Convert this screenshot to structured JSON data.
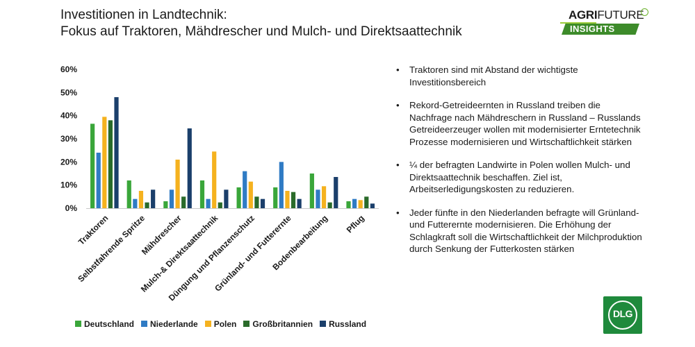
{
  "header": {
    "title_line1": "Investitionen in Landtechnik:",
    "title_line2": "Fokus auf Traktoren, Mähdrescher und Mulch- und Direktsaattechnik"
  },
  "logo_agrifuture": {
    "agri": "AGRI",
    "future": "FUTURE",
    "insights": "INSIGHTS"
  },
  "logo_dlg": {
    "text": "DLG"
  },
  "notes": [
    "Traktoren sind mit Abstand der wichtigste Investitionsbereich",
    "Rekord-Getreideernten in Russland treiben die Nachfrage nach Mähdreschern in Russland – Russlands Getreideerzeuger wollen mit modernisierter Erntetechnik Prozesse modernisieren und Wirtschaftlichkeit stärken",
    "¼ der befragten Landwirte in Polen wollen Mulch- und Direktsaattechnik beschaffen. Ziel ist, Arbeitserledigungskosten zu reduzieren.",
    "Jeder fünfte in den Niederlanden befragte will Grünland- und Futterernte modernisieren. Die Erhöhung der Schlagkraft soll die Wirtschaftlichkeit der Milchproduktion durch Senkung der Futterkosten stärken"
  ],
  "bullet_char": "•",
  "chart_data": {
    "type": "bar",
    "title": "",
    "xlabel": "",
    "ylabel": "",
    "ylim": [
      0,
      60
    ],
    "ytick_values": [
      0,
      10,
      20,
      30,
      40,
      50,
      60
    ],
    "ytick_labels": [
      "0%",
      "10%",
      "20%",
      "30%",
      "40%",
      "50%",
      "60%"
    ],
    "grid": false,
    "legend_position": "bottom",
    "categories": [
      "Traktoren",
      "Selbstfahrende Spritze",
      "Mähdrescher",
      "Mulch-& Direktsaattechnik",
      "Düngung und Pflanzenschutz",
      "Grünland- und Futterernte",
      "Bodenbearbeitung",
      "Pflug"
    ],
    "series": [
      {
        "name": "Deutschland",
        "color": "#3aa63a",
        "values": [
          36.5,
          12,
          3,
          12,
          9,
          9,
          15,
          3
        ]
      },
      {
        "name": "Niederlande",
        "color": "#2f7bc4",
        "values": [
          24,
          4,
          8,
          4,
          16,
          20,
          8,
          4
        ]
      },
      {
        "name": "Polen",
        "color": "#f5b21f",
        "values": [
          39.5,
          7.5,
          21,
          24.5,
          11.5,
          7.5,
          9.5,
          3.5
        ]
      },
      {
        "name": "Großbritannien",
        "color": "#2a6b2a",
        "values": [
          38,
          2.5,
          5,
          2.5,
          5,
          7,
          2.5,
          5
        ]
      },
      {
        "name": "Russland",
        "color": "#1b3f6b",
        "values": [
          48,
          8,
          34.5,
          8,
          4,
          4,
          13.5,
          2
        ]
      }
    ]
  }
}
